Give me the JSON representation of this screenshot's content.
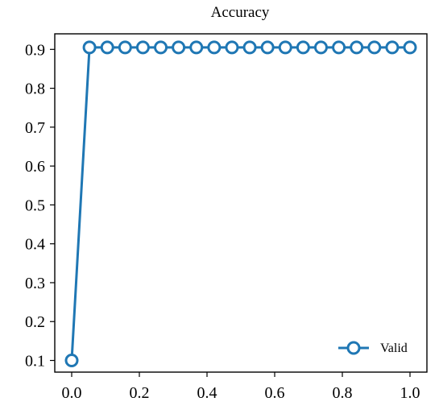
{
  "chart_data": {
    "type": "line",
    "title": "Accuracy",
    "xlabel": "",
    "ylabel": "",
    "xlim": [
      -0.05,
      1.05
    ],
    "ylim": [
      0.07,
      0.94
    ],
    "xticks": [
      0.0,
      0.2,
      0.4,
      0.6,
      0.8,
      1.0
    ],
    "xtick_labels": [
      "0.0",
      "0.2",
      "0.4",
      "0.6",
      "0.8",
      "1.0"
    ],
    "yticks": [
      0.1,
      0.2,
      0.3,
      0.4,
      0.5,
      0.6,
      0.7,
      0.8,
      0.9
    ],
    "ytick_labels": [
      "0.1",
      "0.2",
      "0.3",
      "0.4",
      "0.5",
      "0.6",
      "0.7",
      "0.8",
      "0.9"
    ],
    "grid": false,
    "legend_position": "bottom-right",
    "series": [
      {
        "name": "Valid",
        "color": "#1f77b4",
        "marker": "circle-open",
        "x": [
          0.0,
          0.0526,
          0.1053,
          0.1579,
          0.2105,
          0.2632,
          0.3158,
          0.3684,
          0.4211,
          0.4737,
          0.5263,
          0.5789,
          0.6316,
          0.6842,
          0.7368,
          0.7895,
          0.8421,
          0.8947,
          0.9474,
          1.0
        ],
        "y": [
          0.1,
          0.905,
          0.905,
          0.905,
          0.905,
          0.905,
          0.905,
          0.905,
          0.905,
          0.905,
          0.905,
          0.905,
          0.905,
          0.905,
          0.905,
          0.905,
          0.905,
          0.905,
          0.905,
          0.905
        ]
      }
    ]
  }
}
